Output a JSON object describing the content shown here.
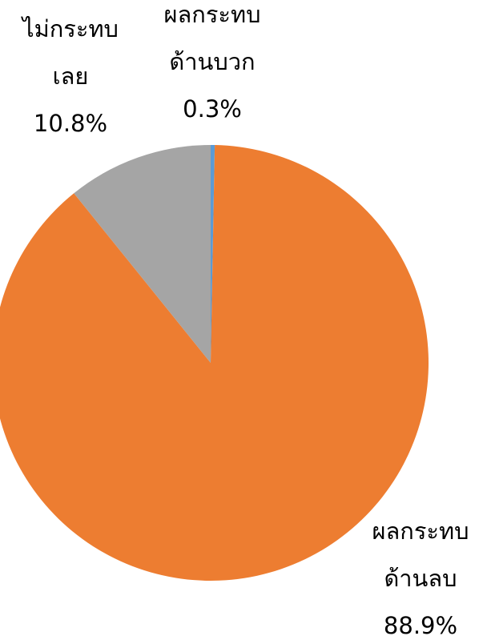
{
  "chart_data": {
    "type": "pie",
    "categories": [
      [
        "ผลกระทบ",
        "ด้านบวก"
      ],
      [
        "ผลกระทบ",
        "ด้านลบ"
      ],
      [
        "ไม่กระทบ",
        "เลย"
      ]
    ],
    "values": [
      0.3,
      88.9,
      10.8
    ],
    "value_labels": [
      "0.3%",
      "88.9%",
      "10.8%"
    ],
    "colors": [
      "#5b9bd5",
      "#ed7d31",
      "#a5a5a5"
    ]
  }
}
